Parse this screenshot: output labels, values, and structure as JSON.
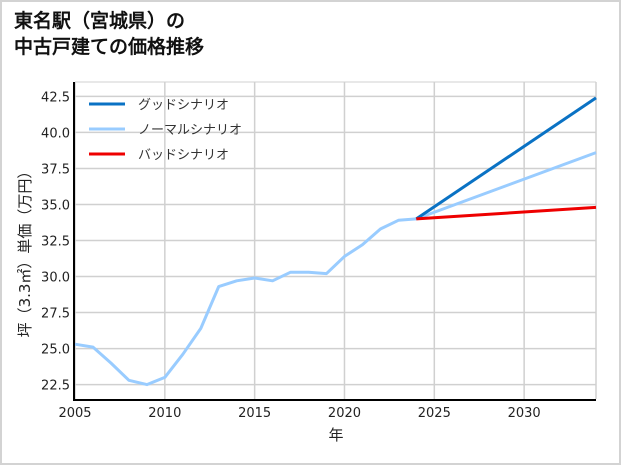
{
  "title": {
    "line1": "東名駅（宮城県）の",
    "line2": "中古戸建ての価格推移"
  },
  "colors": {
    "good": "#0a72c4",
    "normal": "#99ccff",
    "bad": "#ee0000",
    "grid": "#d0d0d0",
    "axis": "#000000",
    "frame": "#d3d3d3"
  },
  "chart_data": {
    "type": "line",
    "title": "東名駅（宮城県）の中古戸建ての価格推移",
    "xlabel": "年",
    "ylabel": "坪（3.3㎡）単価（万円）",
    "xlim": [
      2005,
      2034
    ],
    "ylim": [
      21.5,
      43.5
    ],
    "xticks": [
      2005,
      2010,
      2015,
      2020,
      2025,
      2030
    ],
    "yticks": [
      22.5,
      25.0,
      27.5,
      30.0,
      32.5,
      35.0,
      37.5,
      40.0,
      42.5
    ],
    "ytick_labels": [
      "22.5",
      "25.0",
      "27.5",
      "30.0",
      "32.5",
      "35.0",
      "37.5",
      "40.0",
      "42.5"
    ],
    "grid": true,
    "legend_position": "upper left",
    "legend": [
      "グッドシナリオ",
      "ノーマルシナリオ",
      "バッドシナリオ"
    ],
    "series": [
      {
        "name": "グッドシナリオ",
        "color": "#0a72c4",
        "x": [
          2024,
          2034
        ],
        "values": [
          34.0,
          42.4
        ]
      },
      {
        "name": "ノーマルシナリオ",
        "color": "#99ccff",
        "x": [
          2005,
          2006,
          2007,
          2008,
          2009,
          2010,
          2011,
          2012,
          2013,
          2014,
          2015,
          2016,
          2017,
          2018,
          2019,
          2020,
          2021,
          2022,
          2023,
          2024,
          2034
        ],
        "values": [
          25.3,
          25.1,
          24.0,
          22.8,
          22.5,
          23.0,
          24.6,
          26.4,
          29.3,
          29.7,
          29.9,
          29.7,
          30.3,
          30.3,
          30.2,
          31.4,
          32.2,
          33.3,
          33.9,
          34.0,
          38.6
        ]
      },
      {
        "name": "バッドシナリオ",
        "color": "#ee0000",
        "x": [
          2024,
          2034
        ],
        "values": [
          34.0,
          34.8
        ]
      }
    ]
  }
}
